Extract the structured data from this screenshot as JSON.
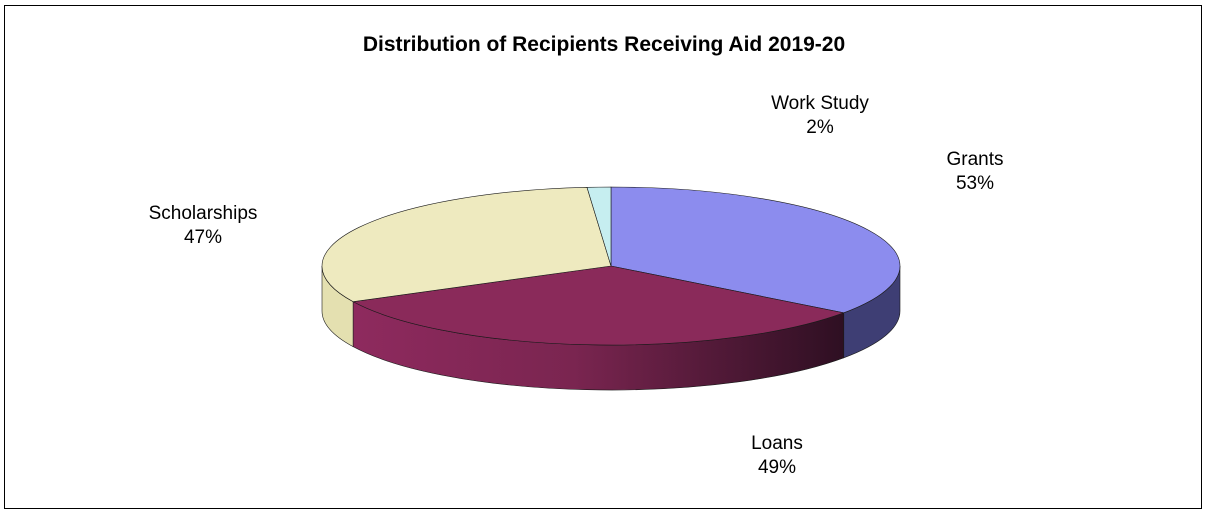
{
  "chart_data": {
    "type": "pie",
    "title": "Distribution of Recipients Receiving Aid 2019-20",
    "slices": [
      {
        "name": "Grants",
        "value": 53,
        "pct_label": "53%",
        "color": "#8c8cee",
        "side_color": "#3e3e74"
      },
      {
        "name": "Loans",
        "value": 49,
        "pct_label": "49%",
        "color": "#8a2a5a",
        "side_color": "#7a2450"
      },
      {
        "name": "Scholarships",
        "value": 47,
        "pct_label": "47%",
        "color": "#eeeabf",
        "side_color": "#e4e0b0"
      },
      {
        "name": "Work Study",
        "value": 2,
        "pct_label": "2%",
        "color": "#c6eef0",
        "side_color": "#a8dde0"
      }
    ],
    "legend": "none",
    "style": "3d-exploded-off"
  }
}
